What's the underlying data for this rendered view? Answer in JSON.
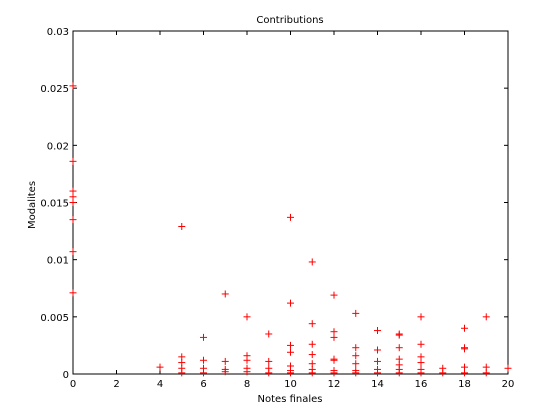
{
  "chart_data": {
    "type": "scatter",
    "title": "Contributions",
    "xlabel": "Notes finales",
    "ylabel": "Modalites",
    "xlim": [
      0,
      20
    ],
    "ylim": [
      0,
      0.03
    ],
    "x_ticks": [
      0,
      2,
      4,
      6,
      8,
      10,
      12,
      14,
      16,
      18,
      20
    ],
    "y_ticks": [
      0,
      0.005,
      0.01,
      0.015,
      0.02,
      0.025,
      0.03
    ],
    "x_tick_labels": [
      "0",
      "2",
      "4",
      "6",
      "8",
      "10",
      "12",
      "14",
      "16",
      "18",
      "20"
    ],
    "y_tick_labels": [
      "0",
      "0.005",
      "0.01",
      "0.015",
      "0.02",
      "0.025",
      "0.03"
    ],
    "grid": false,
    "marker": "plus",
    "marker_color": "#ff0000",
    "series": [
      {
        "points": [
          [
            0,
            0.0252
          ],
          [
            0,
            0.0186
          ],
          [
            0,
            0.016
          ],
          [
            0,
            0.0155
          ],
          [
            0,
            0.015
          ],
          [
            0,
            0.0135
          ],
          [
            0,
            0.0107
          ],
          [
            0,
            0.0071
          ],
          [
            4,
            0.0006
          ],
          [
            5,
            0.0129
          ],
          [
            5,
            0.0015
          ],
          [
            5,
            0.001
          ],
          [
            5,
            0.0005
          ],
          [
            5,
            0.0001
          ],
          [
            6,
            0.0032
          ],
          [
            6,
            0.0012
          ],
          [
            6,
            0.0005
          ],
          [
            6,
            0.0001
          ],
          [
            7,
            0.007
          ],
          [
            7,
            0.0011
          ],
          [
            7,
            0.0004
          ],
          [
            7,
            0.0002
          ],
          [
            8,
            0.005
          ],
          [
            8,
            0.0016
          ],
          [
            8,
            0.0012
          ],
          [
            8,
            0.0005
          ],
          [
            8,
            0.0002
          ],
          [
            9,
            0.0035
          ],
          [
            9,
            0.0011
          ],
          [
            9,
            0.0005
          ],
          [
            9,
            0.0001
          ],
          [
            10,
            0.0137
          ],
          [
            10,
            0.0062
          ],
          [
            10,
            0.0025
          ],
          [
            10,
            0.0019
          ],
          [
            10,
            0.0007
          ],
          [
            10,
            0.0003
          ],
          [
            10,
            0.0001
          ],
          [
            11,
            0.0098
          ],
          [
            11,
            0.0044
          ],
          [
            11,
            0.0026
          ],
          [
            11,
            0.0017
          ],
          [
            11,
            0.0009
          ],
          [
            11,
            0.0004
          ],
          [
            11,
            0.0001
          ],
          [
            12,
            0.0069
          ],
          [
            12,
            0.0037
          ],
          [
            12,
            0.0032
          ],
          [
            12,
            0.0013
          ],
          [
            12,
            0.0012
          ],
          [
            12,
            0.0003
          ],
          [
            12,
            0.0001
          ],
          [
            13,
            0.0053
          ],
          [
            13,
            0.0023
          ],
          [
            13,
            0.0016
          ],
          [
            13,
            0.0009
          ],
          [
            13,
            0.0003
          ],
          [
            13,
            0.0001
          ],
          [
            14,
            0.0038
          ],
          [
            14,
            0.0021
          ],
          [
            14,
            0.0011
          ],
          [
            14,
            0.0004
          ],
          [
            14,
            0.0001
          ],
          [
            15,
            0.0035
          ],
          [
            15,
            0.0034
          ],
          [
            15,
            0.0023
          ],
          [
            15,
            0.0013
          ],
          [
            15,
            0.0008
          ],
          [
            15,
            0.0004
          ],
          [
            15,
            0.0001
          ],
          [
            16,
            0.005
          ],
          [
            16,
            0.0026
          ],
          [
            16,
            0.0015
          ],
          [
            16,
            0.001
          ],
          [
            16,
            0.0004
          ],
          [
            16,
            0.0001
          ],
          [
            17,
            0.0005
          ],
          [
            17,
            0.0001
          ],
          [
            18,
            0.004
          ],
          [
            18,
            0.0023
          ],
          [
            18,
            0.0022
          ],
          [
            18,
            0.0006
          ],
          [
            18,
            0.0001
          ],
          [
            19,
            0.005
          ],
          [
            19,
            0.0006
          ],
          [
            19,
            0.0001
          ],
          [
            20,
            0.0005
          ]
        ]
      }
    ]
  }
}
